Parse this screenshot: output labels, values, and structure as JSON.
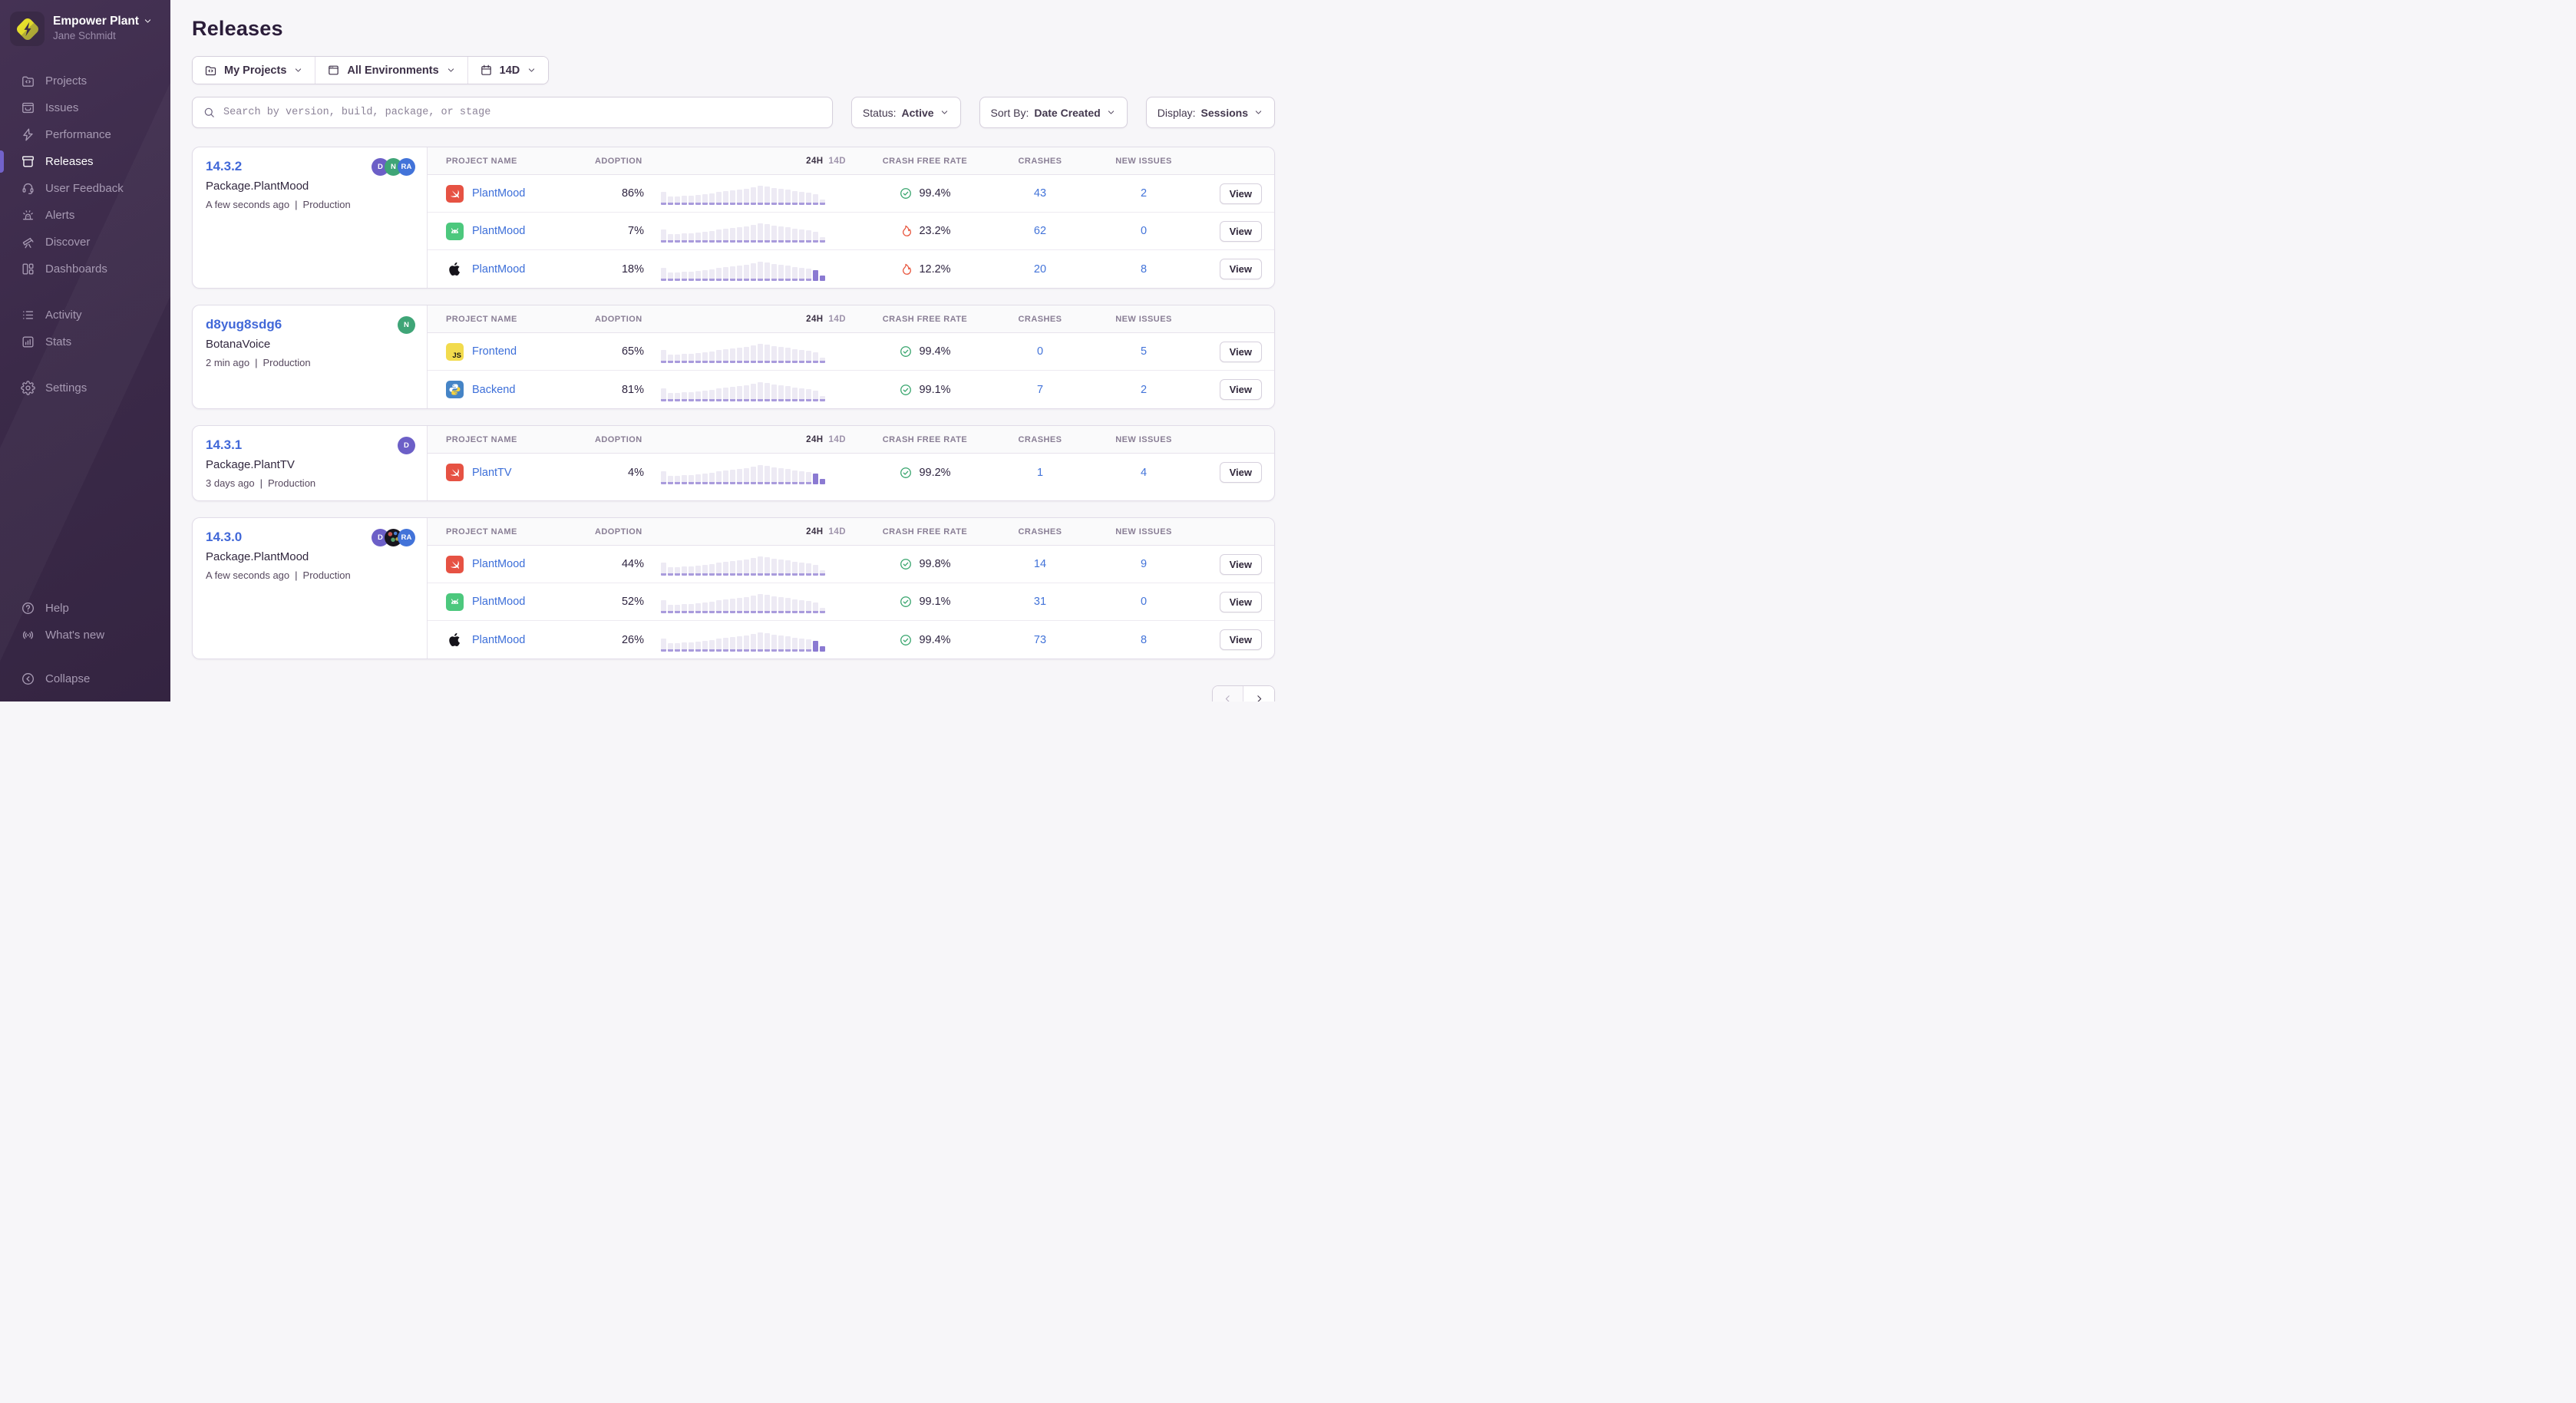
{
  "sidebar": {
    "org": {
      "name": "Empower Plant",
      "user": "Jane Schmidt"
    },
    "items": [
      {
        "label": "Projects",
        "icon": "projects",
        "active": false
      },
      {
        "label": "Issues",
        "icon": "issues",
        "active": false
      },
      {
        "label": "Performance",
        "icon": "performance",
        "active": false
      },
      {
        "label": "Releases",
        "icon": "releases",
        "active": true
      },
      {
        "label": "User Feedback",
        "icon": "feedback",
        "active": false
      },
      {
        "label": "Alerts",
        "icon": "alerts",
        "active": false
      },
      {
        "label": "Discover",
        "icon": "discover",
        "active": false
      },
      {
        "label": "Dashboards",
        "icon": "dashboards",
        "active": false
      }
    ],
    "secondary": [
      {
        "label": "Activity",
        "icon": "activity",
        "active": false
      },
      {
        "label": "Stats",
        "icon": "stats",
        "active": false
      }
    ],
    "tertiary": [
      {
        "label": "Settings",
        "icon": "settings",
        "active": false
      }
    ],
    "footer": [
      {
        "label": "Help",
        "icon": "help",
        "active": false
      },
      {
        "label": "What's new",
        "icon": "whats-new",
        "active": false
      }
    ],
    "collapse": {
      "label": "Collapse",
      "icon": "collapse"
    }
  },
  "page": {
    "title": "Releases"
  },
  "filters": [
    {
      "label": "My Projects",
      "icon": "folder-code"
    },
    {
      "label": "All Environments",
      "icon": "window"
    },
    {
      "label": "14D",
      "icon": "calendar"
    }
  ],
  "search": {
    "placeholder": "Search by version, build, package, or stage",
    "value": ""
  },
  "controls": [
    {
      "label": "Status:",
      "value": "Active"
    },
    {
      "label": "Sort By:",
      "value": "Date Created"
    },
    {
      "label": "Display:",
      "value": "Sessions"
    }
  ],
  "table": {
    "project": "PROJECT NAME",
    "adoption": "ADOPTION",
    "h24": "24H",
    "d14": "14D",
    "crash_free": "CRASH FREE RATE",
    "crashes": "CRASHES",
    "new_issues": "NEW ISSUES"
  },
  "view_label": "View",
  "sparkline_heights": [
    17,
    11,
    11,
    12,
    12,
    13,
    14,
    15,
    17,
    18,
    19,
    20,
    21,
    23,
    25,
    24,
    22,
    21,
    20,
    18,
    17,
    16,
    14,
    7
  ],
  "releases": [
    {
      "version": "14.3.2",
      "package": "Package.PlantMood",
      "time": "A few seconds ago",
      "environment": "Production",
      "avatars": [
        {
          "initials": "D",
          "color": "#6C5FC7"
        },
        {
          "initials": "N",
          "color": "#3FA577"
        },
        {
          "initials": "RA",
          "color": "#4273D9"
        }
      ],
      "rows": [
        {
          "platform": "swift",
          "project": "PlantMood",
          "adoption": "86%",
          "crash_status": "good",
          "crash_free": "99.4%",
          "crashes": "43",
          "new_issues": "2",
          "spark_tail": 0
        },
        {
          "platform": "android",
          "project": "PlantMood",
          "adoption": "7%",
          "crash_status": "bad",
          "crash_free": "23.2%",
          "crashes": "62",
          "new_issues": "0",
          "spark_tail": 0
        },
        {
          "platform": "apple",
          "project": "PlantMood",
          "adoption": "18%",
          "crash_status": "bad",
          "crash_free": "12.2%",
          "crashes": "20",
          "new_issues": "8",
          "spark_tail": 2
        }
      ]
    },
    {
      "version": "d8yug8sdg6",
      "package": "BotanaVoice",
      "time": "2 min ago",
      "environment": "Production",
      "avatars": [
        {
          "initials": "N",
          "color": "#3FA577"
        }
      ],
      "rows": [
        {
          "platform": "js",
          "project": "Frontend",
          "adoption": "65%",
          "crash_status": "good",
          "crash_free": "99.4%",
          "crashes": "0",
          "new_issues": "5",
          "spark_tail": 0
        },
        {
          "platform": "python",
          "project": "Backend",
          "adoption": "81%",
          "crash_status": "good",
          "crash_free": "99.1%",
          "crashes": "7",
          "new_issues": "2",
          "spark_tail": 0
        }
      ]
    },
    {
      "version": "14.3.1",
      "package": "Package.PlantTV",
      "time": "3 days ago",
      "environment": "Production",
      "avatars": [
        {
          "initials": "D",
          "color": "#6C5FC7"
        }
      ],
      "rows": [
        {
          "platform": "swift",
          "project": "PlantTV",
          "adoption": "4%",
          "crash_status": "good",
          "crash_free": "99.2%",
          "crashes": "1",
          "new_issues": "4",
          "spark_tail": 2
        }
      ]
    },
    {
      "version": "14.3.0",
      "package": "Package.PlantMood",
      "time": "A few seconds ago",
      "environment": "Production",
      "avatars": [
        {
          "initials": "D",
          "color": "#6C5FC7"
        },
        {
          "initials": "",
          "color": "photo"
        },
        {
          "initials": "RA",
          "color": "#4273D9"
        }
      ],
      "rows": [
        {
          "platform": "swift",
          "project": "PlantMood",
          "adoption": "44%",
          "crash_status": "good",
          "crash_free": "99.8%",
          "crashes": "14",
          "new_issues": "9",
          "spark_tail": 0
        },
        {
          "platform": "android",
          "project": "PlantMood",
          "adoption": "52%",
          "crash_status": "good",
          "crash_free": "99.1%",
          "crashes": "31",
          "new_issues": "0",
          "spark_tail": 0
        },
        {
          "platform": "apple",
          "project": "PlantMood",
          "adoption": "26%",
          "crash_status": "good",
          "crash_free": "99.4%",
          "crashes": "73",
          "new_issues": "8",
          "spark_tail": 2
        }
      ]
    }
  ],
  "pagination": {
    "prev_enabled": false,
    "next_enabled": true
  },
  "colors": {
    "accent": "#6C5FC7",
    "link": "#3D6FD9",
    "good": "#36A46C",
    "bad": "#E8573F",
    "spark_bar": "#EDEAF4",
    "spark_base": "#A99BDC",
    "spark_tail": "#8B7AD2"
  }
}
